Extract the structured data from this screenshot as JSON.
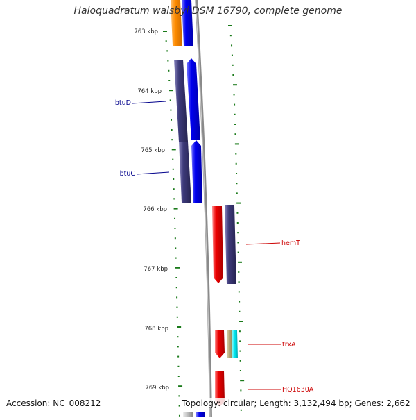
{
  "title": "Haloquadratum walsbyi DSM 16790, complete genome",
  "footer": {
    "accession": "Accession: NC_008212",
    "topology": "Topology: circular; Length: 3,132,494 bp; Genes: 2,662"
  },
  "colors": {
    "backbone": "#8a8a8a",
    "tick": "#1a7a1a",
    "forward_label": "#00008b",
    "reverse_label": "#cc0000",
    "blue": "#0000ee",
    "navy": "#3d3a7a",
    "red": "#ee0000",
    "orange": "#ff8c00",
    "khaki": "#b5a97a",
    "cyan": "#00e5ee"
  },
  "axis_labels": [
    "763 kbp",
    "764 kbp",
    "765 kbp",
    "766 kbp",
    "767 kbp",
    "768 kbp",
    "769 kbp"
  ],
  "gene_labels": [
    {
      "name": "btuD",
      "strand": "forward"
    },
    {
      "name": "btuC",
      "strand": "forward"
    },
    {
      "name": "hemT",
      "strand": "reverse"
    },
    {
      "name": "trxA",
      "strand": "reverse"
    },
    {
      "name": "HQ1630A",
      "strand": "reverse"
    }
  ]
}
